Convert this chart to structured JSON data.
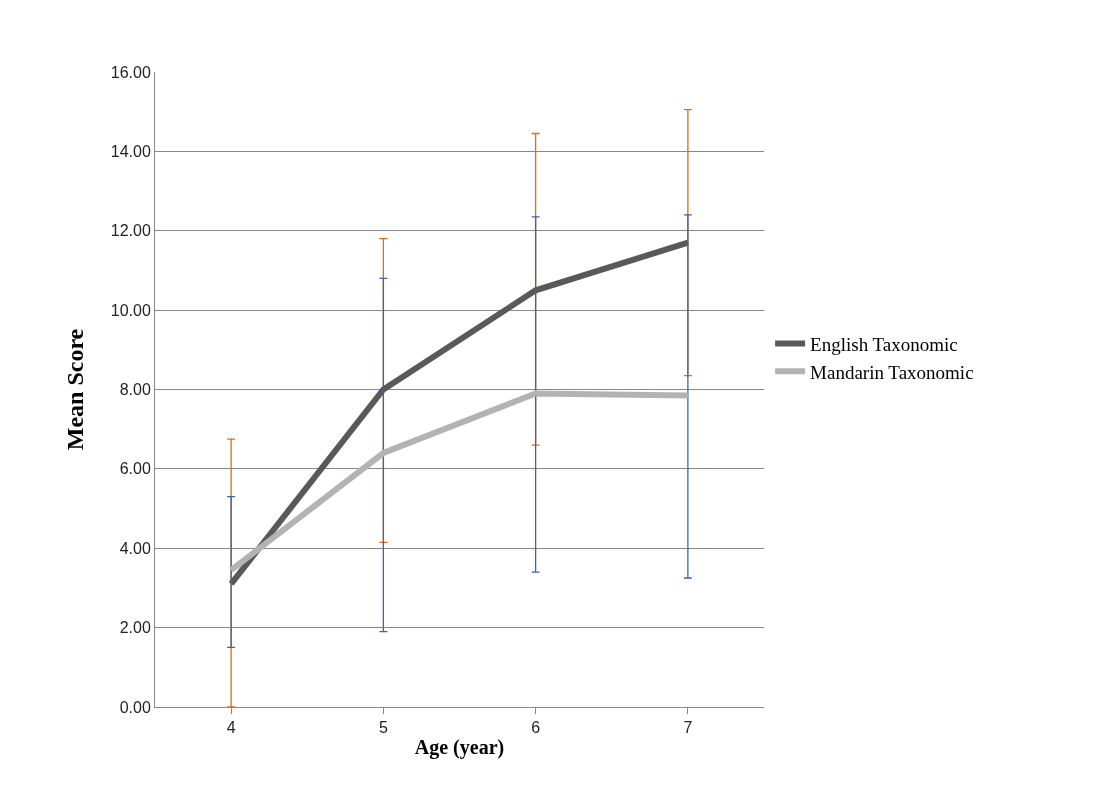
{
  "chart_data": {
    "type": "line",
    "xlabel": "Age (year)",
    "ylabel": "Mean Score",
    "categories": [
      "4",
      "5",
      "6",
      "7"
    ],
    "series": [
      {
        "name": "English Taxonomic",
        "color": "#595959",
        "values": [
          3.1,
          8.0,
          10.5,
          11.7
        ],
        "errors": [
          [
            0,
            6.75
          ],
          [
            4.15,
            11.8
          ],
          [
            6.6,
            14.45
          ],
          [
            8.35,
            15.05
          ]
        ]
      },
      {
        "name": "Mandarin Taxonomic",
        "color": "#b3b3b3",
        "values": [
          3.45,
          6.4,
          7.9,
          7.85
        ],
        "errors": [
          [
            1.5,
            5.3
          ],
          [
            1.9,
            10.8
          ],
          [
            3.4,
            12.35
          ],
          [
            3.25,
            12.4
          ]
        ]
      }
    ],
    "ylim": [
      0,
      16
    ],
    "yticks": [
      {
        "value": 0,
        "label": "0.00"
      },
      {
        "value": 2,
        "label": "2.00"
      },
      {
        "value": 4,
        "label": "4.00"
      },
      {
        "value": 6,
        "label": "6.00"
      },
      {
        "value": 8,
        "label": "8.00"
      },
      {
        "value": 10,
        "label": "10.00"
      },
      {
        "value": 12,
        "label": "12.00"
      },
      {
        "value": 14,
        "label": "14.00"
      },
      {
        "value": 16,
        "label": "16.00"
      }
    ],
    "grid": "y",
    "legend": "right",
    "marker": "none",
    "line_style": "solid"
  }
}
